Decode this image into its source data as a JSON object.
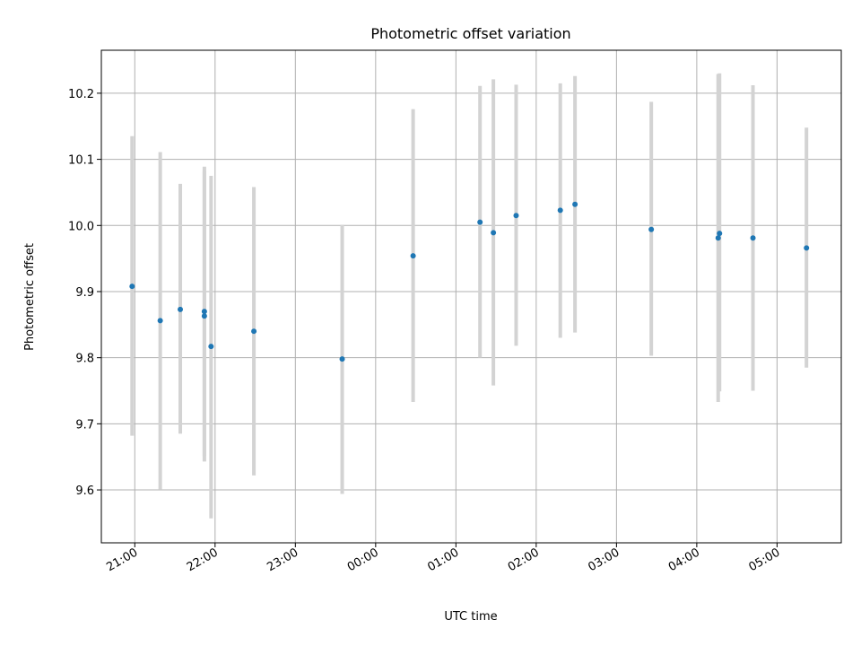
{
  "chart_data": {
    "type": "scatter",
    "title": "Photometric offset variation",
    "xlabel": "UTC time",
    "ylabel": "Photometric offset",
    "grid": true,
    "xlim": [
      "20:35",
      "05:48"
    ],
    "ylim": [
      9.52,
      10.265
    ],
    "x_ticks": [
      "21:00",
      "22:00",
      "23:00",
      "00:00",
      "01:00",
      "02:00",
      "03:00",
      "04:00",
      "05:00"
    ],
    "y_ticks": [
      9.6,
      9.7,
      9.8,
      9.9,
      10.0,
      10.1,
      10.2
    ],
    "y_tick_labels": [
      "9.6",
      "9.7",
      "9.8",
      "9.9",
      "10.0",
      "10.1",
      "10.2"
    ],
    "point_color": "#1f77b4",
    "errorbar_color": "#d3d3d3",
    "points": [
      {
        "x": "20:58",
        "y": 9.908,
        "yerr_low": 9.682,
        "yerr_high": 10.135
      },
      {
        "x": "21:19",
        "y": 9.856,
        "yerr_low": 9.601,
        "yerr_high": 10.111
      },
      {
        "x": "21:34",
        "y": 9.873,
        "yerr_low": 9.685,
        "yerr_high": 10.063
      },
      {
        "x": "21:52",
        "y": 9.87,
        "yerr_low": 9.651,
        "yerr_high": 10.089
      },
      {
        "x": "21:52",
        "y": 9.863,
        "yerr_low": 9.643,
        "yerr_high": 10.082
      },
      {
        "x": "21:57",
        "y": 9.817,
        "yerr_low": 9.557,
        "yerr_high": 10.075
      },
      {
        "x": "22:29",
        "y": 9.84,
        "yerr_low": 9.622,
        "yerr_high": 10.058
      },
      {
        "x": "23:35",
        "y": 9.798,
        "yerr_low": 9.594,
        "yerr_high": 10.001
      },
      {
        "x": "00:28",
        "y": 9.954,
        "yerr_low": 9.733,
        "yerr_high": 10.176
      },
      {
        "x": "01:18",
        "y": 10.005,
        "yerr_low": 9.8,
        "yerr_high": 10.211
      },
      {
        "x": "01:28",
        "y": 9.989,
        "yerr_low": 9.758,
        "yerr_high": 10.221
      },
      {
        "x": "01:45",
        "y": 10.015,
        "yerr_low": 9.818,
        "yerr_high": 10.213
      },
      {
        "x": "02:18",
        "y": 10.023,
        "yerr_low": 9.83,
        "yerr_high": 10.215
      },
      {
        "x": "02:29",
        "y": 10.032,
        "yerr_low": 9.838,
        "yerr_high": 10.226
      },
      {
        "x": "03:26",
        "y": 9.994,
        "yerr_low": 9.803,
        "yerr_high": 10.187
      },
      {
        "x": "04:16",
        "y": 9.981,
        "yerr_low": 9.733,
        "yerr_high": 10.229
      },
      {
        "x": "04:17",
        "y": 9.988,
        "yerr_low": 9.749,
        "yerr_high": 10.23
      },
      {
        "x": "04:42",
        "y": 9.981,
        "yerr_low": 9.75,
        "yerr_high": 10.212
      },
      {
        "x": "05:22",
        "y": 9.966,
        "yerr_low": 9.785,
        "yerr_high": 10.148
      }
    ]
  }
}
